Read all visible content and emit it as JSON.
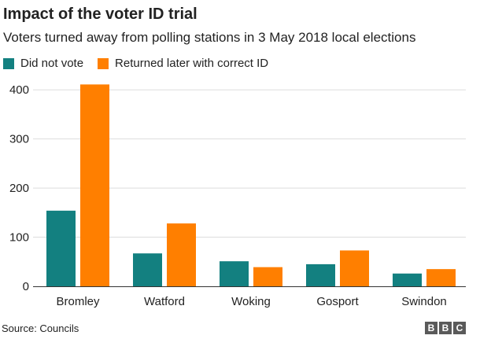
{
  "header": {
    "title": "Impact of the voter ID trial",
    "subtitle": "Voters turned away from polling stations in 3 May 2018 local elections"
  },
  "footer": {
    "source": "Source: Councils",
    "logo": [
      "B",
      "B",
      "C"
    ]
  },
  "chart_data": {
    "type": "bar",
    "title": "Impact of the voter ID trial",
    "subtitle": "Voters turned away from polling stations in 3 May 2018 local elections",
    "xlabel": "",
    "ylabel": "",
    "categories": [
      "Bromley",
      "Watford",
      "Woking",
      "Gosport",
      "Swindon"
    ],
    "series": [
      {
        "name": "Did not vote",
        "color": "#138080",
        "values": [
          154,
          67,
          51,
          45,
          26
        ]
      },
      {
        "name": "Returned later with correct ID",
        "color": "#ff7f00",
        "values": [
          411,
          128,
          39,
          73,
          35
        ]
      }
    ],
    "ylim": [
      0,
      410
    ],
    "yticks": [
      0,
      100,
      200,
      300,
      400
    ],
    "grid": true,
    "legend_position": "top-left"
  }
}
